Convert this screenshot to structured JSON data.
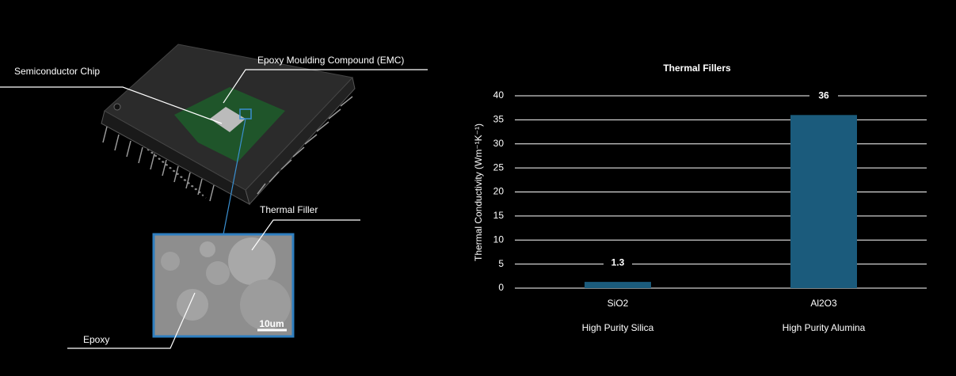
{
  "diagram": {
    "labels": [
      "Semiconductor Chip",
      "Epoxy Moulding Compound (EMC)",
      "Thermal Filler",
      "Epoxy"
    ],
    "scale_bar": "10um"
  },
  "chart_data": {
    "type": "bar",
    "title": "Thermal Fillers",
    "y_label": "Thermal Conductivity (Wm⁻¹K⁻¹)",
    "categories": [
      "SiO2",
      "Al2O3"
    ],
    "subcategories": [
      "High Purity Silica",
      "High Purity Alumina"
    ],
    "values": [
      1.3,
      36
    ],
    "color": "#1b5b7c",
    "ylim": [
      0,
      40
    ],
    "yticks": [
      0,
      5,
      10,
      15,
      20,
      25,
      30,
      35,
      40
    ],
    "grid": true
  }
}
